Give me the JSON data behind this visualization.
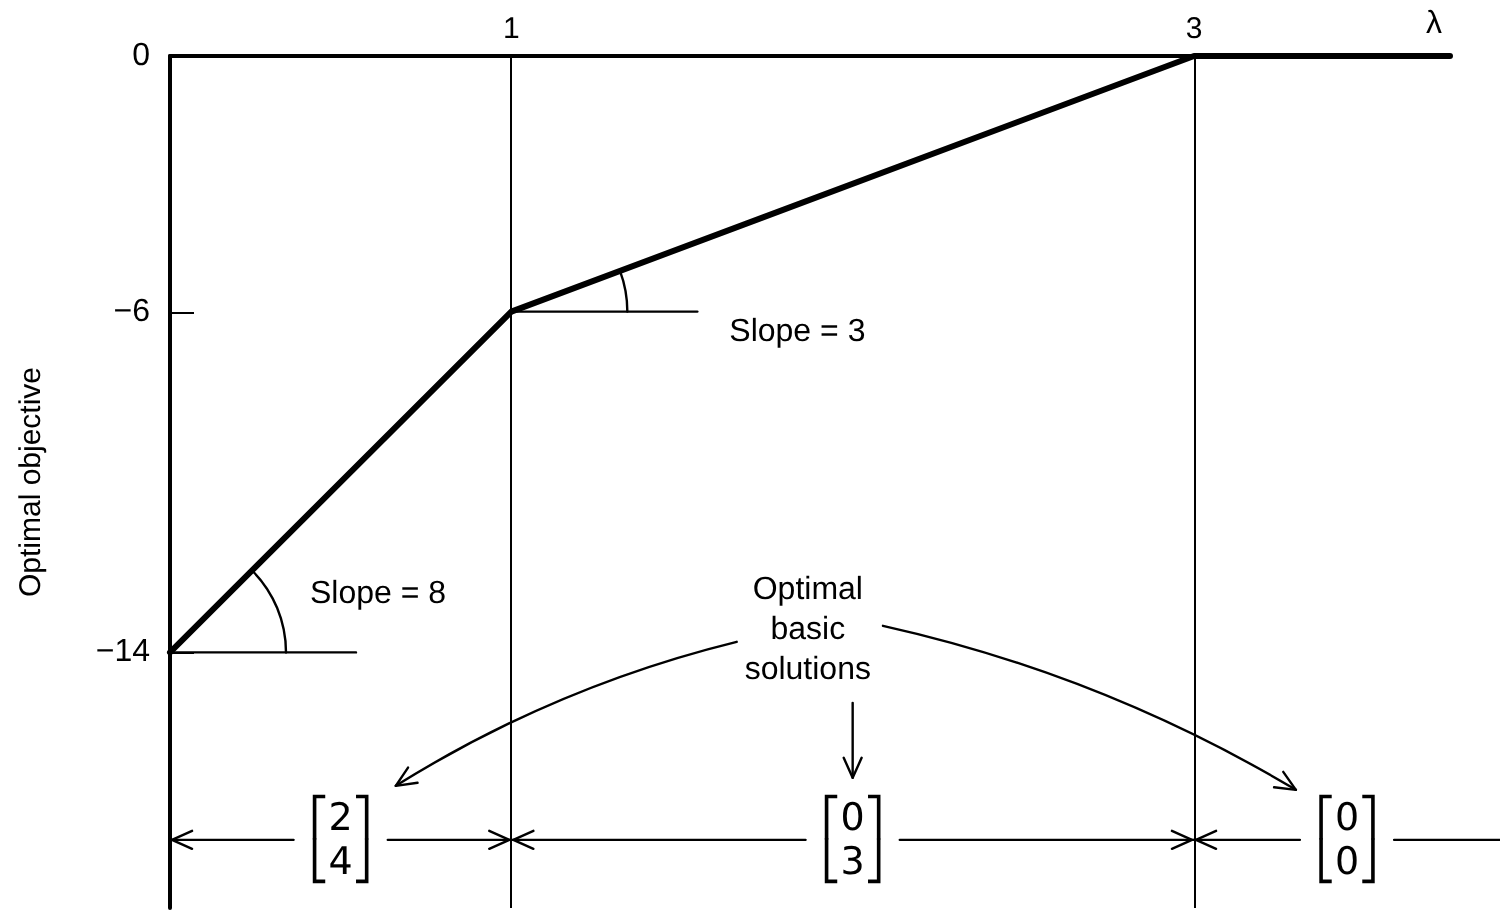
{
  "chart_data": {
    "type": "line",
    "xlabel": "λ",
    "ylabel": "Optimal objective",
    "x": [
      0,
      1,
      3,
      3.75
    ],
    "values": [
      -14,
      -6,
      0,
      0
    ],
    "color": "#000000",
    "xlim": [
      0,
      3.75
    ],
    "xticks": [
      1,
      3
    ],
    "ylim": [
      -20,
      0
    ],
    "yticks": [
      0,
      {
        "value": -6,
        "label": "−6"
      },
      {
        "value": -14,
        "label": "−14"
      }
    ],
    "grid": false,
    "ref_lines": [
      {
        "axis": "x",
        "value": 1
      },
      {
        "axis": "x",
        "value": 3
      }
    ],
    "annotations": [
      {
        "text": "Slope = 8",
        "x": 0,
        "y": -14
      },
      {
        "text": "Slope = 3",
        "x": 1,
        "y": -6
      },
      "Optimal basic solutions",
      {
        "text": "⎡2⎤\n⎣4⎦",
        "x": 1,
        "y": -18.4
      },
      {
        "text": "⎡0⎤\n⎣3⎦",
        "x": 3,
        "y": -18.4
      },
      "⎡0⎤\n⎣0⎦"
    ]
  }
}
